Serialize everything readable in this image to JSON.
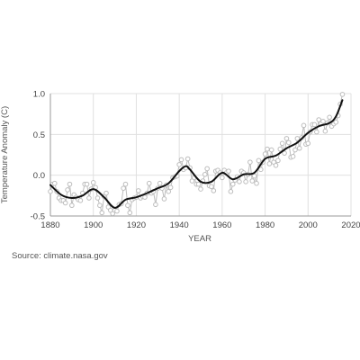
{
  "chart_data": {
    "type": "line",
    "xlabel": "YEAR",
    "ylabel": "Temperature Anomaly (C)",
    "xlim": [
      1880,
      2020
    ],
    "ylim": [
      -0.5,
      1.0
    ],
    "xticks": [
      1880,
      1900,
      1920,
      1940,
      1960,
      1980,
      2000,
      2020
    ],
    "yticks": [
      1.0,
      0.5,
      0.0,
      -0.5
    ],
    "ytick_labels": [
      "1.0",
      "0.5",
      "0.0",
      "-0.5"
    ],
    "grid": true,
    "colors": {
      "annual": "#bdbdbd",
      "smoothed": "#111111",
      "grid": "#e0e0e0",
      "axis": "#999999"
    },
    "series": [
      {
        "style": "points-line",
        "x": [
          1880,
          1881,
          1882,
          1883,
          1884,
          1885,
          1886,
          1887,
          1888,
          1889,
          1890,
          1891,
          1892,
          1893,
          1894,
          1895,
          1896,
          1897,
          1898,
          1899,
          1900,
          1901,
          1902,
          1903,
          1904,
          1905,
          1906,
          1907,
          1908,
          1909,
          1910,
          1911,
          1912,
          1913,
          1914,
          1915,
          1916,
          1917,
          1918,
          1919,
          1920,
          1921,
          1922,
          1923,
          1924,
          1925,
          1926,
          1927,
          1928,
          1929,
          1930,
          1931,
          1932,
          1933,
          1934,
          1935,
          1936,
          1937,
          1938,
          1939,
          1940,
          1941,
          1942,
          1943,
          1944,
          1945,
          1946,
          1947,
          1948,
          1949,
          1950,
          1951,
          1952,
          1953,
          1954,
          1955,
          1956,
          1957,
          1958,
          1959,
          1960,
          1961,
          1962,
          1963,
          1964,
          1965,
          1966,
          1967,
          1968,
          1969,
          1970,
          1971,
          1972,
          1973,
          1974,
          1975,
          1976,
          1977,
          1978,
          1979,
          1980,
          1981,
          1982,
          1983,
          1984,
          1985,
          1986,
          1987,
          1988,
          1989,
          1990,
          1991,
          1992,
          1993,
          1994,
          1995,
          1996,
          1997,
          1998,
          1999,
          2000,
          2001,
          2002,
          2003,
          2004,
          2005,
          2006,
          2007,
          2008,
          2009,
          2010,
          2011,
          2012,
          2013,
          2014,
          2015,
          2016
        ],
        "y": [
          -0.2,
          -0.11,
          -0.1,
          -0.2,
          -0.28,
          -0.31,
          -0.31,
          -0.34,
          -0.18,
          -0.11,
          -0.37,
          -0.24,
          -0.27,
          -0.3,
          -0.31,
          -0.22,
          -0.11,
          -0.11,
          -0.28,
          -0.17,
          -0.09,
          -0.15,
          -0.28,
          -0.37,
          -0.46,
          -0.26,
          -0.22,
          -0.39,
          -0.43,
          -0.47,
          -0.43,
          -0.44,
          -0.36,
          -0.35,
          -0.16,
          -0.11,
          -0.37,
          -0.46,
          -0.3,
          -0.28,
          -0.27,
          -0.19,
          -0.28,
          -0.26,
          -0.27,
          -0.22,
          -0.1,
          -0.22,
          -0.2,
          -0.36,
          -0.16,
          -0.1,
          -0.16,
          -0.29,
          -0.12,
          -0.2,
          -0.15,
          -0.03,
          -0.02,
          -0.01,
          0.13,
          0.19,
          0.07,
          0.09,
          0.2,
          0.09,
          -0.07,
          -0.03,
          -0.11,
          -0.11,
          -0.17,
          -0.07,
          0.01,
          0.08,
          -0.13,
          -0.14,
          -0.19,
          0.05,
          0.06,
          0.03,
          -0.03,
          0.06,
          0.03,
          0.05,
          -0.2,
          -0.11,
          -0.06,
          -0.02,
          -0.08,
          0.05,
          0.03,
          -0.08,
          0.01,
          0.16,
          -0.07,
          -0.01,
          -0.1,
          0.18,
          0.07,
          0.16,
          0.26,
          0.32,
          0.14,
          0.31,
          0.16,
          0.12,
          0.18,
          0.32,
          0.39,
          0.27,
          0.45,
          0.4,
          0.22,
          0.23,
          0.31,
          0.45,
          0.33,
          0.46,
          0.61,
          0.38,
          0.39,
          0.53,
          0.62,
          0.62,
          0.53,
          0.68,
          0.63,
          0.66,
          0.54,
          0.64,
          0.71,
          0.6,
          0.63,
          0.65,
          0.73,
          0.87,
          0.99
        ]
      },
      {
        "style": "smoothed",
        "x": [
          1880,
          1885,
          1890,
          1895,
          1900,
          1905,
          1910,
          1915,
          1920,
          1925,
          1930,
          1935,
          1940,
          1943,
          1945,
          1950,
          1955,
          1960,
          1965,
          1970,
          1975,
          1980,
          1985,
          1990,
          1995,
          2000,
          2005,
          2010,
          2013,
          2016
        ],
        "y": [
          -0.12,
          -0.24,
          -0.28,
          -0.25,
          -0.17,
          -0.27,
          -0.4,
          -0.3,
          -0.27,
          -0.22,
          -0.16,
          -0.1,
          0.05,
          0.11,
          0.07,
          -0.08,
          -0.08,
          0.03,
          -0.05,
          0.01,
          0.03,
          0.2,
          0.24,
          0.33,
          0.4,
          0.52,
          0.6,
          0.64,
          0.72,
          0.92
        ]
      }
    ]
  },
  "source_text": "Source: climate.nasa.gov"
}
